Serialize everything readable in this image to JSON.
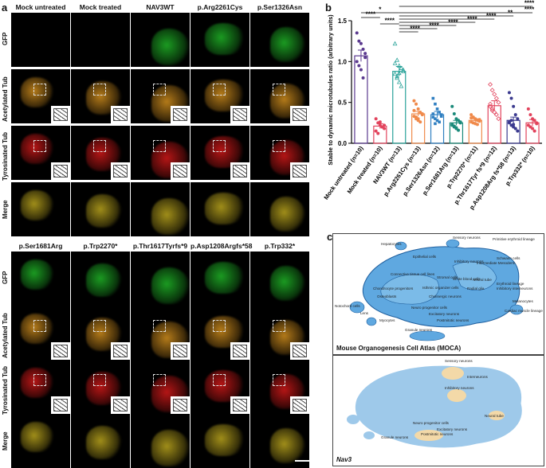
{
  "panels": {
    "a": "a",
    "b": "b",
    "c": "c"
  },
  "top_columns": [
    "Mock untreated",
    "Mock treated",
    "NAV3WT",
    "p.Arg2261Cys",
    "p.Ser1326Asn"
  ],
  "bottom_columns": [
    "p.Ser1681Arg",
    "p.Trp2270*",
    "p.Thr1617Tyrfs*9",
    "p.Asp1208Argfs*58",
    "p.Trp332*"
  ],
  "rows": [
    "GFP",
    "Acetylated Tub",
    "Tyrosinated Tub",
    "Merge"
  ],
  "atlas": {
    "top_title": "Mouse Organogenesis Cell Atlas (MOCA)",
    "bottom_title": "Nav3",
    "top_labels": [
      "Hepatocytes",
      "Primitive erythroid lineage",
      "Sensory neurons",
      "Epithelial cells",
      "Schwann cells",
      "Inhibitory neurons",
      "Intermediate Mesoderm",
      "Connective tissue cell lines",
      "Stromal cells",
      "White blood cells",
      "Neural tube",
      "Erythroid lineage",
      "Inhibitory interneurons",
      "Chondrocyte progenitors",
      "Isthmic organizer cells",
      "Radial glia",
      "Melanocytes",
      "Notochord cells",
      "Osteoblasts",
      "Cholinergic neurons",
      "Cardiac muscle lineage",
      "Lens",
      "Myocytes",
      "Neuro progenitor cells",
      "Excitatory neurons",
      "Postmitotic neurons",
      "Granule neurons"
    ],
    "bottom_labels": [
      "Sensory neurons",
      "Interneurons",
      "Inhibitory neurons",
      "Neural tube",
      "Neuro progenitor cells",
      "Excitatory neurons",
      "Granule neurons",
      "Postmitotic neurons"
    ]
  },
  "chart_data": {
    "type": "scatter-bar",
    "ylabel": "Stable to dynamic microtubules ratio (arbitrary units)",
    "ylim": [
      0,
      1.5
    ],
    "yticks": [
      "0.0",
      "0.5",
      "1.0",
      "1.5"
    ],
    "categories": [
      "Mock untreated (n=10)",
      "Mock treated (n=10)",
      "NAV3WT (n=13)",
      "p.Arg2261Cys (n=13)",
      "p.Ser1326Asn (n=12)",
      "p.Ser1681Arg (n=13)",
      "p.Trp2270* (n=11)",
      "p.Thr1617Tyr fs*9 (n=12)",
      "p.Asp1208Arg fs*58 (n=13)",
      "p.Trp332* (n=10)"
    ],
    "means": [
      1.07,
      0.21,
      0.88,
      0.36,
      0.35,
      0.25,
      0.28,
      0.46,
      0.28,
      0.25
    ],
    "sem": [
      0.07,
      0.03,
      0.06,
      0.03,
      0.04,
      0.03,
      0.02,
      0.06,
      0.04,
      0.04
    ],
    "colors": [
      "#5b3a8f",
      "#e2435c",
      "#2aa39a",
      "#f08a4b",
      "#2f7fc1",
      "#1a8a7a",
      "#f08a4b",
      "#e2435c",
      "#3b3a8f",
      "#e2435c"
    ],
    "points": [
      [
        1.35,
        1.25,
        1.22,
        1.15,
        1.05,
        1.0,
        0.95,
        0.9,
        0.8,
        1.1
      ],
      [
        0.3,
        0.25,
        0.22,
        0.2,
        0.18,
        0.15,
        0.12,
        0.26,
        0.2,
        0.22
      ],
      [
        1.22,
        1.02,
        0.95,
        0.92,
        0.88,
        0.85,
        0.8,
        0.75,
        0.7,
        0.9,
        0.98,
        0.82,
        0.86
      ],
      [
        0.52,
        0.48,
        0.42,
        0.38,
        0.35,
        0.33,
        0.3,
        0.28,
        0.26,
        0.36,
        0.4,
        0.32,
        0.3
      ],
      [
        0.55,
        0.48,
        0.42,
        0.38,
        0.35,
        0.32,
        0.3,
        0.28,
        0.26,
        0.33,
        0.36,
        0.24
      ],
      [
        0.45,
        0.36,
        0.3,
        0.28,
        0.25,
        0.22,
        0.2,
        0.18,
        0.16,
        0.26,
        0.23,
        0.21,
        0.19
      ],
      [
        0.35,
        0.32,
        0.3,
        0.28,
        0.27,
        0.26,
        0.25,
        0.24,
        0.23,
        0.29,
        0.31
      ],
      [
        0.72,
        0.65,
        0.6,
        0.55,
        0.5,
        0.45,
        0.42,
        0.38,
        0.35,
        0.3,
        0.48,
        0.4
      ],
      [
        0.62,
        0.55,
        0.45,
        0.35,
        0.3,
        0.26,
        0.22,
        0.2,
        0.18,
        0.15,
        0.25,
        0.28,
        0.23
      ],
      [
        0.42,
        0.35,
        0.3,
        0.28,
        0.25,
        0.22,
        0.2,
        0.18,
        0.15,
        0.24
      ]
    ],
    "significance": [
      "****",
      "****",
      "*",
      "****",
      "****",
      "****",
      "****",
      "****",
      "**",
      "****",
      "****"
    ]
  }
}
